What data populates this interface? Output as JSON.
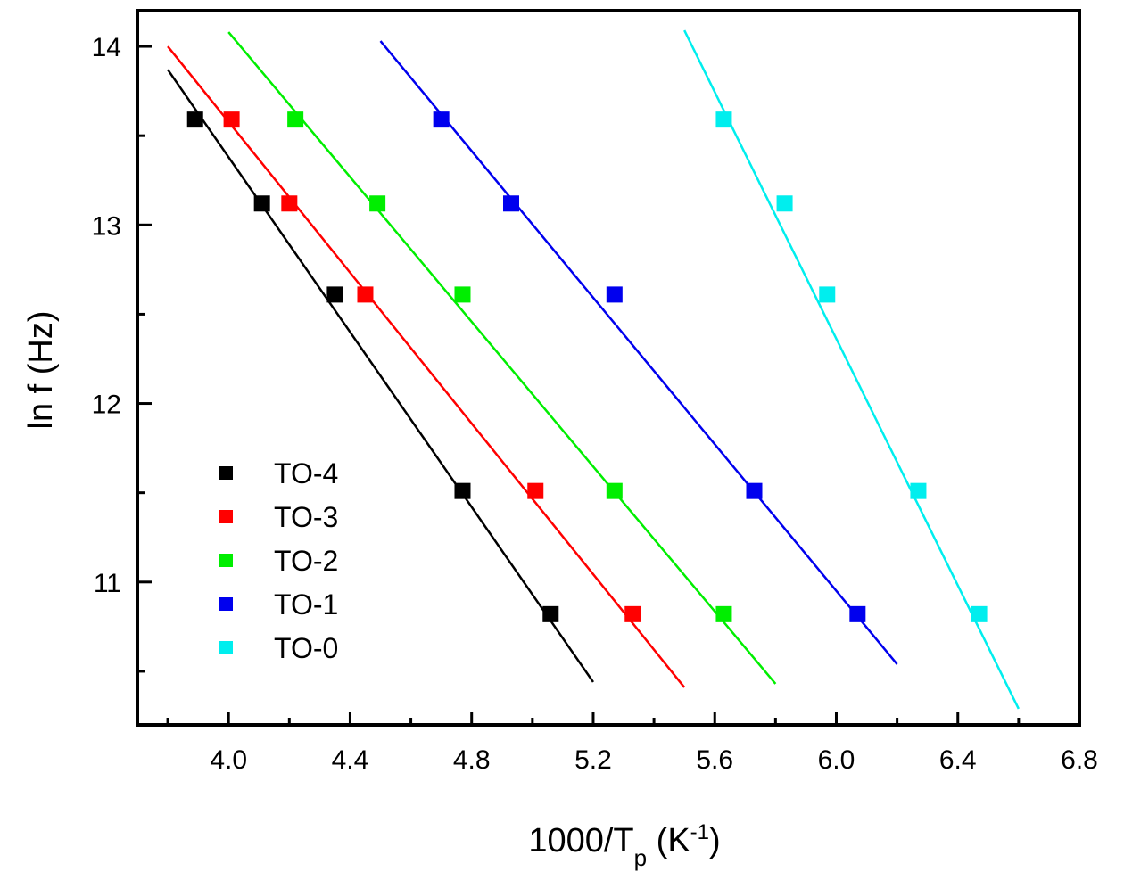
{
  "chart_data": {
    "type": "scatter",
    "title": "",
    "xlabel": "1000/T",
    "xlabel_sub": "p",
    "xlabel_unit_open": " (K",
    "xlabel_unit_sup": "-1",
    "xlabel_unit_close": ")",
    "ylabel": "ln f (Hz)",
    "xlim": [
      3.7,
      6.8
    ],
    "ylim": [
      10.2,
      14.2
    ],
    "x_major_ticks": [
      4.0,
      4.4,
      4.8,
      5.2,
      5.6,
      6.0,
      6.4,
      6.8
    ],
    "x_tick_labels": [
      "4.0",
      "4.4",
      "4.8",
      "5.2",
      "5.6",
      "6.0",
      "6.4",
      "6.8"
    ],
    "x_minor_ticks": [
      3.8,
      4.2,
      4.6,
      5.0,
      5.4,
      5.8,
      6.2,
      6.6
    ],
    "y_major_ticks": [
      11,
      12,
      13,
      14
    ],
    "y_tick_labels": [
      "11",
      "12",
      "13",
      "14"
    ],
    "y_minor_ticks": [
      10.5,
      11.5,
      12.5,
      13.5
    ],
    "grid": false,
    "legend_position": "bottom-left",
    "y_values": [
      13.59,
      13.12,
      12.61,
      11.51,
      10.82
    ],
    "series": [
      {
        "name": "TO-4",
        "color": "#000000",
        "x": [
          3.89,
          4.11,
          4.35,
          4.77,
          5.06
        ],
        "fit_x": [
          3.8,
          5.2
        ],
        "fit_y": [
          13.87,
          10.44
        ]
      },
      {
        "name": "TO-3",
        "color": "#ff0000",
        "x": [
          4.01,
          4.2,
          4.45,
          5.01,
          5.33
        ],
        "fit_x": [
          3.8,
          5.5
        ],
        "fit_y": [
          14.0,
          10.41
        ]
      },
      {
        "name": "TO-2",
        "color": "#00ee00",
        "x": [
          4.22,
          4.49,
          4.77,
          5.27,
          5.63
        ],
        "fit_x": [
          4.0,
          5.8
        ],
        "fit_y": [
          14.08,
          10.43
        ]
      },
      {
        "name": "TO-1",
        "color": "#0000ee",
        "x": [
          4.7,
          4.93,
          5.27,
          5.73,
          6.07
        ],
        "fit_x": [
          4.5,
          6.2
        ],
        "fit_y": [
          14.03,
          10.54
        ]
      },
      {
        "name": "TO-0",
        "color": "#00eeee",
        "x": [
          5.63,
          5.83,
          5.97,
          6.27,
          6.47
        ],
        "fit_x": [
          5.5,
          6.6
        ],
        "fit_y": [
          14.09,
          10.29
        ]
      }
    ]
  }
}
